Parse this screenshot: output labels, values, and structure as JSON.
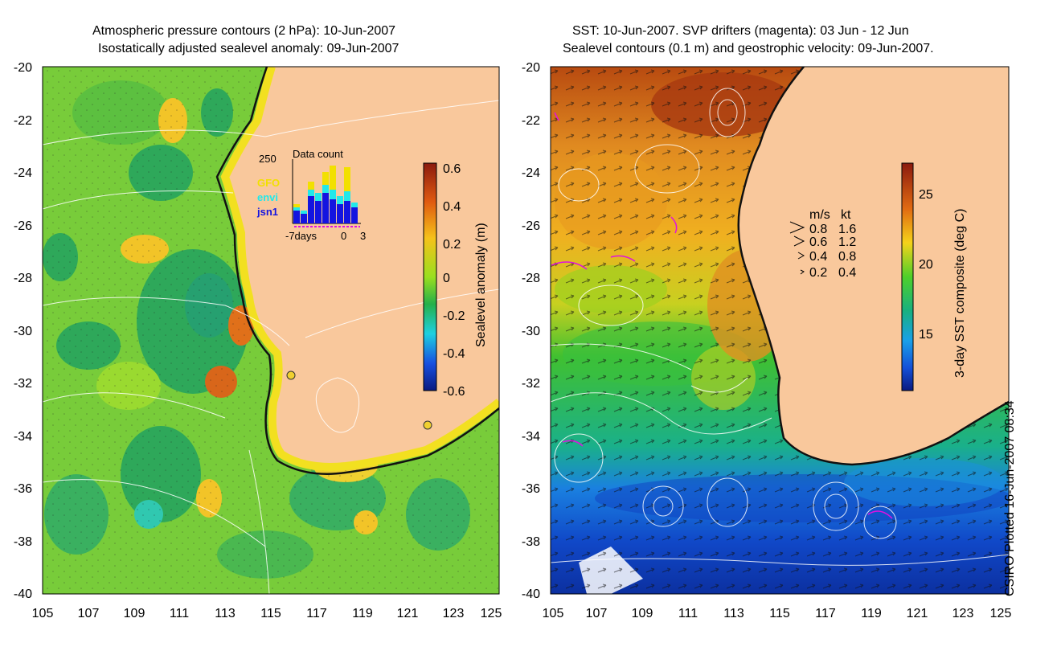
{
  "left_panel": {
    "title_line1": "Atmospheric pressure contours (2 hPa): 10-Jun-2007",
    "title_line2": "Isostatically adjusted sealevel anomaly: 09-Jun-2007",
    "colorbar": {
      "label": "Sealevel anomaly (m)",
      "ticks": [
        "0.6",
        "0.4",
        "0.2",
        "0",
        "-0.2",
        "-0.4",
        "-0.6"
      ]
    },
    "inset": {
      "title": "Data count",
      "ymax_label": "250",
      "legend": [
        {
          "name": "GFO",
          "color": "#f2e000"
        },
        {
          "name": "envi",
          "color": "#22e8ea"
        },
        {
          "name": "jsn1",
          "color": "#1414e0"
        }
      ],
      "x_labels": [
        "-7days",
        "0",
        "3"
      ]
    }
  },
  "right_panel": {
    "title_line1": "SST: 10-Jun-2007. SVP drifters (magenta): 03 Jun - 12 Jun",
    "title_line2": "Sealevel contours (0.1 m) and geostrophic velocity: 09-Jun-2007.",
    "colorbar": {
      "label": "3-day SST composite (deg C)",
      "ticks": [
        "25",
        "20",
        "15"
      ]
    },
    "velocity_legend": {
      "header_ms": "m/s",
      "header_kt": "kt",
      "rows": [
        {
          "ms": "0.8",
          "kt": "1.6"
        },
        {
          "ms": "0.6",
          "kt": "1.2"
        },
        {
          "ms": "0.4",
          "kt": "0.8"
        },
        {
          "ms": "0.2",
          "kt": "0.4"
        }
      ]
    }
  },
  "axes": {
    "y_labels": [
      "-20",
      "-22",
      "-24",
      "-26",
      "-28",
      "-30",
      "-32",
      "-34",
      "-36",
      "-38",
      "-40"
    ],
    "x_labels": [
      "105",
      "107",
      "109",
      "111",
      "113",
      "115",
      "117",
      "119",
      "121",
      "123",
      "125"
    ]
  },
  "credit": "CSIRO Plotted 16-Jun-2007 08:34"
}
